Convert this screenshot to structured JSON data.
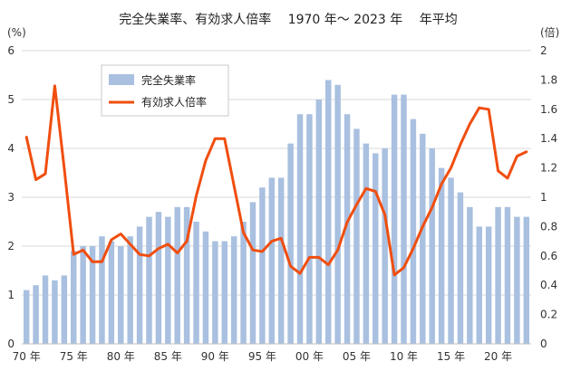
{
  "chart_data": {
    "type": "bar",
    "title": "完全失業率、有効求人倍率　 1970 年～ 2023 年　 年平均",
    "left_axis_unit": "(%)",
    "right_axis_unit": "(倍)",
    "left_ylim": [
      0,
      6
    ],
    "right_ylim": [
      0,
      2
    ],
    "left_ticks": [
      "0",
      "1",
      "2",
      "3",
      "4",
      "5",
      "6"
    ],
    "right_ticks": [
      "0",
      "0.2",
      "0.4",
      "0.6",
      "0.8",
      "1",
      "1.2",
      "1.4",
      "1.6",
      "1.8",
      "2"
    ],
    "grid": true,
    "legend_position": "top-left",
    "colors": {
      "bar": "#a9c0e0",
      "line": "#f04e0f",
      "grid": "#d9d9d9"
    },
    "x_years": [
      1970,
      1971,
      1972,
      1973,
      1974,
      1975,
      1976,
      1977,
      1978,
      1979,
      1980,
      1981,
      1982,
      1983,
      1984,
      1985,
      1986,
      1987,
      1988,
      1989,
      1990,
      1991,
      1992,
      1993,
      1994,
      1995,
      1996,
      1997,
      1998,
      1999,
      2000,
      2001,
      2002,
      2003,
      2004,
      2005,
      2006,
      2007,
      2008,
      2009,
      2010,
      2011,
      2012,
      2013,
      2014,
      2015,
      2016,
      2017,
      2018,
      2019,
      2020,
      2021,
      2022,
      2023
    ],
    "x_tick_labels": [
      {
        "year": 1970,
        "label": "70 年"
      },
      {
        "year": 1975,
        "label": "75 年"
      },
      {
        "year": 1980,
        "label": "80 年"
      },
      {
        "year": 1985,
        "label": "85 年"
      },
      {
        "year": 1990,
        "label": "90 年"
      },
      {
        "year": 1995,
        "label": "95 年"
      },
      {
        "year": 2000,
        "label": "00 年"
      },
      {
        "year": 2005,
        "label": "05 年"
      },
      {
        "year": 2010,
        "label": "10 年"
      },
      {
        "year": 2015,
        "label": "15 年"
      },
      {
        "year": 2020,
        "label": "20 年"
      }
    ],
    "series": [
      {
        "name": "完全失業率",
        "kind": "bar",
        "axis": "left",
        "values": [
          1.1,
          1.2,
          1.4,
          1.3,
          1.4,
          1.9,
          2.0,
          2.0,
          2.2,
          2.1,
          2.0,
          2.2,
          2.4,
          2.6,
          2.7,
          2.6,
          2.8,
          2.8,
          2.5,
          2.3,
          2.1,
          2.1,
          2.2,
          2.5,
          2.9,
          3.2,
          3.4,
          3.4,
          4.1,
          4.7,
          4.7,
          5.0,
          5.4,
          5.3,
          4.7,
          4.4,
          4.1,
          3.9,
          4.0,
          5.1,
          5.1,
          4.6,
          4.3,
          4.0,
          3.6,
          3.4,
          3.1,
          2.8,
          2.4,
          2.4,
          2.8,
          2.8,
          2.6,
          2.6
        ]
      },
      {
        "name": "有効求人倍率",
        "kind": "line",
        "axis": "right",
        "values": [
          1.41,
          1.12,
          1.16,
          1.76,
          1.2,
          0.61,
          0.64,
          0.56,
          0.56,
          0.71,
          0.75,
          0.68,
          0.61,
          0.6,
          0.65,
          0.68,
          0.62,
          0.7,
          1.01,
          1.25,
          1.4,
          1.4,
          1.08,
          0.76,
          0.64,
          0.63,
          0.7,
          0.72,
          0.53,
          0.48,
          0.59,
          0.59,
          0.54,
          0.64,
          0.83,
          0.95,
          1.06,
          1.04,
          0.88,
          0.47,
          0.52,
          0.65,
          0.8,
          0.93,
          1.09,
          1.2,
          1.36,
          1.5,
          1.61,
          1.6,
          1.18,
          1.13,
          1.28,
          1.31
        ]
      }
    ]
  }
}
